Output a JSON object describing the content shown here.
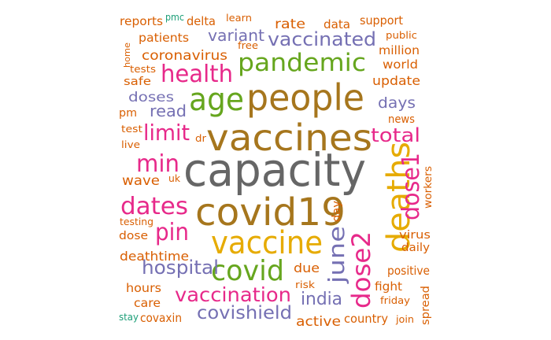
{
  "palette": {
    "gray": "#666666",
    "brown": "#A6761D",
    "gold": "#E6AB02",
    "magenta": "#E7298A",
    "purple": "#7570B3",
    "green": "#66A61E",
    "orange": "#D95F02",
    "teal": "#1B9E77"
  },
  "words": [
    {
      "text": "capacity",
      "color": "gray"
    },
    {
      "text": "vaccines",
      "color": "brown"
    },
    {
      "text": "people",
      "color": "brown"
    },
    {
      "text": "covid19",
      "color": "brown"
    },
    {
      "text": "vaccine",
      "color": "gold"
    },
    {
      "text": "deaths",
      "color": "gold"
    },
    {
      "text": "age",
      "color": "green"
    },
    {
      "text": "pandemic",
      "color": "green"
    },
    {
      "text": "covid",
      "color": "green"
    },
    {
      "text": "health",
      "color": "magenta"
    },
    {
      "text": "limit",
      "color": "magenta"
    },
    {
      "text": "min",
      "color": "magenta"
    },
    {
      "text": "dates",
      "color": "magenta"
    },
    {
      "text": "pin",
      "color": "magenta"
    },
    {
      "text": "dose1",
      "color": "magenta"
    },
    {
      "text": "dose2",
      "color": "magenta"
    },
    {
      "text": "june",
      "color": "purple"
    },
    {
      "text": "total",
      "color": "magenta"
    },
    {
      "text": "vaccinated",
      "color": "purple"
    },
    {
      "text": "vaccination",
      "color": "magenta"
    },
    {
      "text": "hospital",
      "color": "purple"
    },
    {
      "text": "covishield",
      "color": "purple"
    },
    {
      "text": "india",
      "color": "purple"
    },
    {
      "text": "variant",
      "color": "purple"
    },
    {
      "text": "days",
      "color": "purple"
    },
    {
      "text": "read",
      "color": "purple"
    },
    {
      "text": "coronavirus",
      "color": "orange"
    },
    {
      "text": "doses",
      "color": "purple"
    },
    {
      "text": "rate",
      "color": "orange"
    },
    {
      "text": "wave",
      "color": "orange"
    },
    {
      "text": "due",
      "color": "orange"
    },
    {
      "text": "active",
      "color": "orange"
    },
    {
      "text": "patients",
      "color": "orange"
    },
    {
      "text": "reports",
      "color": "orange"
    },
    {
      "text": "delta",
      "color": "orange"
    },
    {
      "text": "data",
      "color": "orange"
    },
    {
      "text": "support",
      "color": "orange"
    },
    {
      "text": "million",
      "color": "orange"
    },
    {
      "text": "world",
      "color": "orange"
    },
    {
      "text": "update",
      "color": "orange"
    },
    {
      "text": "news",
      "color": "orange"
    },
    {
      "text": "virus",
      "color": "orange"
    },
    {
      "text": "daily",
      "color": "orange"
    },
    {
      "text": "positive",
      "color": "orange"
    },
    {
      "text": "fight",
      "color": "orange"
    },
    {
      "text": "country",
      "color": "orange"
    },
    {
      "text": "spread",
      "color": "orange"
    },
    {
      "text": "deathtime",
      "color": "orange"
    },
    {
      "text": "hours",
      "color": "orange"
    },
    {
      "text": "care",
      "color": "orange"
    },
    {
      "text": "covaxin",
      "color": "orange"
    },
    {
      "text": "safe",
      "color": "orange"
    },
    {
      "text": "dose",
      "color": "orange"
    },
    {
      "text": "pm",
      "color": "orange"
    },
    {
      "text": "day",
      "color": "orange"
    },
    {
      "text": "workers",
      "color": "orange"
    },
    {
      "text": "pmc",
      "color": "teal"
    },
    {
      "text": "stay",
      "color": "teal"
    },
    {
      "text": "learn",
      "color": "orange"
    },
    {
      "text": "free",
      "color": "orange"
    },
    {
      "text": "public",
      "color": "orange"
    },
    {
      "text": "home",
      "color": "orange"
    },
    {
      "text": "tests",
      "color": "orange"
    },
    {
      "text": "test",
      "color": "orange"
    },
    {
      "text": "live",
      "color": "orange"
    },
    {
      "text": "dr",
      "color": "orange"
    },
    {
      "text": "uk",
      "color": "orange"
    },
    {
      "text": "testing",
      "color": "orange"
    },
    {
      "text": "risk",
      "color": "orange"
    },
    {
      "text": "friday",
      "color": "orange"
    },
    {
      "text": "join",
      "color": "orange"
    }
  ]
}
